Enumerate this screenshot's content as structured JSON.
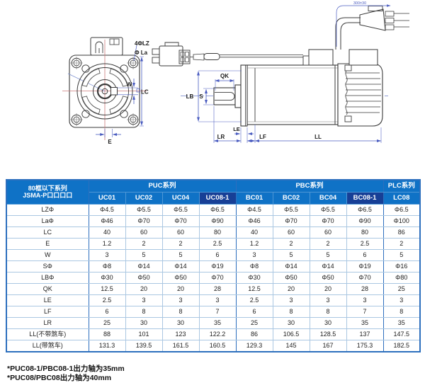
{
  "diagram": {
    "front": {
      "holes_label": "4ΦLZ",
      "la_label": "Φ La",
      "w_label": "W",
      "lc_label": "LC",
      "e_label": "E"
    },
    "side": {
      "qk_label": "QK",
      "lb_label": "LB",
      "s_label": "S",
      "le_label": "LE",
      "lr_label": "LR",
      "lf_label": "LF",
      "ll_label": "LL",
      "cable_label": "300±30"
    }
  },
  "table": {
    "corner": {
      "line1": "80框以下系列",
      "line2": "JSMA-P口口口口"
    },
    "groups": [
      {
        "label": "PUC系列",
        "span": 4
      },
      {
        "label": "PBC系列",
        "span": 4
      },
      {
        "label": "PLC系列",
        "span": 1
      }
    ],
    "columns": [
      "UC01",
      "UC02",
      "UC04",
      "UC08-1",
      "BC01",
      "BC02",
      "BC04",
      "BC08-1",
      "LC08"
    ],
    "dark_columns": [
      "UC08-1",
      "BC08-1"
    ],
    "rows": [
      {
        "label": "LZΦ",
        "values": [
          "Φ4.5",
          "Φ5.5",
          "Φ5.5",
          "Φ6.5",
          "Φ4.5",
          "Φ5.5",
          "Φ5.5",
          "Φ6.5",
          "Φ6.5"
        ]
      },
      {
        "label": "LaΦ",
        "values": [
          "Φ46",
          "Φ70",
          "Φ70",
          "Φ90",
          "Φ46",
          "Φ70",
          "Φ70",
          "Φ90",
          "Φ100"
        ]
      },
      {
        "label": "LC",
        "values": [
          "40",
          "60",
          "60",
          "80",
          "40",
          "60",
          "60",
          "80",
          "86"
        ]
      },
      {
        "label": "E",
        "values": [
          "1.2",
          "2",
          "2",
          "2.5",
          "1.2",
          "2",
          "2",
          "2.5",
          "2"
        ]
      },
      {
        "label": "W",
        "values": [
          "3",
          "5",
          "5",
          "6",
          "3",
          "5",
          "5",
          "6",
          "5"
        ]
      },
      {
        "label": "SΦ",
        "values": [
          "Φ8",
          "Φ14",
          "Φ14",
          "Φ19",
          "Φ8",
          "Φ14",
          "Φ14",
          "Φ19",
          "Φ16"
        ]
      },
      {
        "label": "LBΦ",
        "values": [
          "Φ30",
          "Φ50",
          "Φ50",
          "Φ70",
          "Φ30",
          "Φ50",
          "Φ50",
          "Φ70",
          "Φ80"
        ]
      },
      {
        "label": "QK",
        "values": [
          "12.5",
          "20",
          "20",
          "28",
          "12.5",
          "20",
          "20",
          "28",
          "25"
        ]
      },
      {
        "label": "LE",
        "values": [
          "2.5",
          "3",
          "3",
          "3",
          "2.5",
          "3",
          "3",
          "3",
          "3"
        ]
      },
      {
        "label": "LF",
        "values": [
          "6",
          "8",
          "8",
          "7",
          "6",
          "8",
          "8",
          "7",
          "8"
        ]
      },
      {
        "label": "LR",
        "values": [
          "25",
          "30",
          "30",
          "35",
          "25",
          "30",
          "30",
          "35",
          "35"
        ]
      },
      {
        "label": "LL(不带煞车)",
        "values": [
          "88",
          "101",
          "123",
          "122.2",
          "86",
          "106.5",
          "128.5",
          "137",
          "147.5"
        ]
      },
      {
        "label": "LL(带煞车)",
        "values": [
          "131.3",
          "139.5",
          "161.5",
          "160.5",
          "129.3",
          "145",
          "167",
          "175.3",
          "182.5"
        ]
      }
    ]
  },
  "footnotes": [
    "*PUC08-1/PBC08-1出力轴为35mm",
    "*PUC08/PBC08出力轴为40mm"
  ],
  "colors": {
    "header_blue": "#0f72c6",
    "header_dark_blue": "#173f96",
    "table_border_blue": "#2d6fbe",
    "dimension_blue": "#4a5cc0",
    "centerline_red": "#cb7a7a",
    "drawing_line": "#3a3a3a"
  }
}
